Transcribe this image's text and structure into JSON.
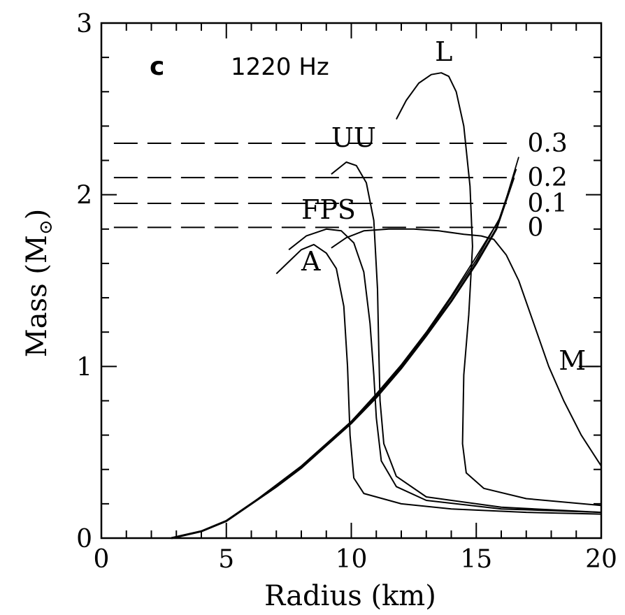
{
  "chart_data": {
    "type": "line",
    "panel_label": "c",
    "frequency_label": "1220 Hz",
    "xlabel": "Radius (km)",
    "ylabel_text": "Mass (M",
    "ylabel_sub": "⊙",
    "ylabel_close": ")",
    "xlim": [
      0,
      20
    ],
    "ylim": [
      0,
      3
    ],
    "x_tick_labels": [
      "0",
      "5",
      "10",
      "15",
      "20"
    ],
    "x_ticks": [
      0,
      5,
      10,
      15,
      20
    ],
    "y_tick_labels": [
      "0",
      "1",
      "2",
      "3"
    ],
    "y_ticks": [
      0,
      1,
      2,
      3
    ],
    "grid": false,
    "series": [
      {
        "name": "A",
        "points": [
          [
            7.0,
            1.54
          ],
          [
            7.5,
            1.61
          ],
          [
            8.0,
            1.68
          ],
          [
            8.5,
            1.71
          ],
          [
            9.0,
            1.66
          ],
          [
            9.4,
            1.57
          ],
          [
            9.7,
            1.35
          ],
          [
            9.85,
            1.0
          ],
          [
            9.95,
            0.6
          ],
          [
            10.1,
            0.35
          ],
          [
            10.5,
            0.26
          ],
          [
            12,
            0.2
          ],
          [
            14,
            0.17
          ],
          [
            17,
            0.15
          ],
          [
            20,
            0.14
          ]
        ]
      },
      {
        "name": "FPS",
        "points": [
          [
            7.5,
            1.68
          ],
          [
            8.2,
            1.76
          ],
          [
            9.0,
            1.8
          ],
          [
            9.6,
            1.79
          ],
          [
            10.1,
            1.72
          ],
          [
            10.5,
            1.55
          ],
          [
            10.75,
            1.25
          ],
          [
            10.9,
            0.95
          ],
          [
            11.0,
            0.7
          ],
          [
            11.2,
            0.45
          ],
          [
            11.8,
            0.3
          ],
          [
            13,
            0.22
          ],
          [
            16,
            0.17
          ],
          [
            20,
            0.15
          ]
        ]
      },
      {
        "name": "UU",
        "points": [
          [
            9.2,
            2.12
          ],
          [
            9.8,
            2.19
          ],
          [
            10.2,
            2.17
          ],
          [
            10.6,
            2.07
          ],
          [
            10.9,
            1.85
          ],
          [
            11.05,
            1.45
          ],
          [
            11.1,
            1.1
          ],
          [
            11.15,
            0.8
          ],
          [
            11.3,
            0.55
          ],
          [
            11.8,
            0.36
          ],
          [
            13,
            0.24
          ],
          [
            16,
            0.18
          ],
          [
            20,
            0.15
          ]
        ]
      },
      {
        "name": "M",
        "points": [
          [
            9.2,
            1.69
          ],
          [
            9.8,
            1.75
          ],
          [
            10.5,
            1.79
          ],
          [
            11.5,
            1.8
          ],
          [
            12.5,
            1.8
          ],
          [
            13.5,
            1.79
          ],
          [
            14.5,
            1.77
          ],
          [
            15.2,
            1.76
          ],
          [
            15.7,
            1.74
          ],
          [
            16.2,
            1.65
          ],
          [
            16.7,
            1.5
          ],
          [
            17.3,
            1.25
          ],
          [
            17.9,
            1.0
          ],
          [
            18.5,
            0.8
          ],
          [
            19.2,
            0.6
          ],
          [
            20,
            0.42
          ]
        ]
      },
      {
        "name": "L",
        "points": [
          [
            11.8,
            2.44
          ],
          [
            12.2,
            2.55
          ],
          [
            12.7,
            2.65
          ],
          [
            13.2,
            2.7
          ],
          [
            13.6,
            2.71
          ],
          [
            13.9,
            2.69
          ],
          [
            14.2,
            2.6
          ],
          [
            14.5,
            2.4
          ],
          [
            14.75,
            2.05
          ],
          [
            14.85,
            1.7
          ],
          [
            14.7,
            1.3
          ],
          [
            14.5,
            0.95
          ],
          [
            14.45,
            0.55
          ],
          [
            14.6,
            0.38
          ],
          [
            15.3,
            0.29
          ],
          [
            17,
            0.23
          ],
          [
            20,
            0.19
          ]
        ]
      }
    ],
    "mass_shedding_curves": [
      {
        "label": "",
        "points": [
          [
            2.8,
            0.0
          ],
          [
            4,
            0.04
          ],
          [
            5,
            0.1
          ],
          [
            6,
            0.2
          ],
          [
            7,
            0.3
          ],
          [
            8,
            0.41
          ],
          [
            9,
            0.54
          ],
          [
            10,
            0.67
          ],
          [
            11,
            0.82
          ],
          [
            12,
            0.99
          ],
          [
            13,
            1.18
          ],
          [
            14,
            1.38
          ],
          [
            15,
            1.6
          ],
          [
            15.8,
            1.8
          ],
          [
            16.5,
            2.1
          ]
        ]
      },
      {
        "label": "",
        "points": [
          [
            2.8,
            0.0
          ],
          [
            4,
            0.04
          ],
          [
            5,
            0.1
          ],
          [
            6,
            0.2
          ],
          [
            7,
            0.31
          ],
          [
            8,
            0.42
          ],
          [
            9,
            0.55
          ],
          [
            10,
            0.68
          ],
          [
            11,
            0.84
          ],
          [
            12,
            1.01
          ],
          [
            13,
            1.2
          ],
          [
            14,
            1.41
          ],
          [
            15,
            1.64
          ],
          [
            15.9,
            1.85
          ],
          [
            16.6,
            2.15
          ]
        ]
      },
      {
        "label": "",
        "points": [
          [
            2.8,
            0.0
          ],
          [
            4,
            0.04
          ],
          [
            5,
            0.1
          ],
          [
            6,
            0.2
          ],
          [
            7,
            0.31
          ],
          [
            8,
            0.42
          ],
          [
            9,
            0.55
          ],
          [
            10,
            0.68
          ],
          [
            11,
            0.83
          ],
          [
            12,
            1.0
          ],
          [
            13,
            1.19
          ],
          [
            14,
            1.4
          ],
          [
            15,
            1.62
          ],
          [
            16,
            1.88
          ],
          [
            16.7,
            2.22
          ]
        ]
      }
    ],
    "reference_lines": [
      {
        "label": "0.3",
        "y": 2.3
      },
      {
        "label": "0.2",
        "y": 2.1
      },
      {
        "label": "0.1",
        "y": 1.95
      },
      {
        "label": "0",
        "y": 1.81
      }
    ]
  }
}
